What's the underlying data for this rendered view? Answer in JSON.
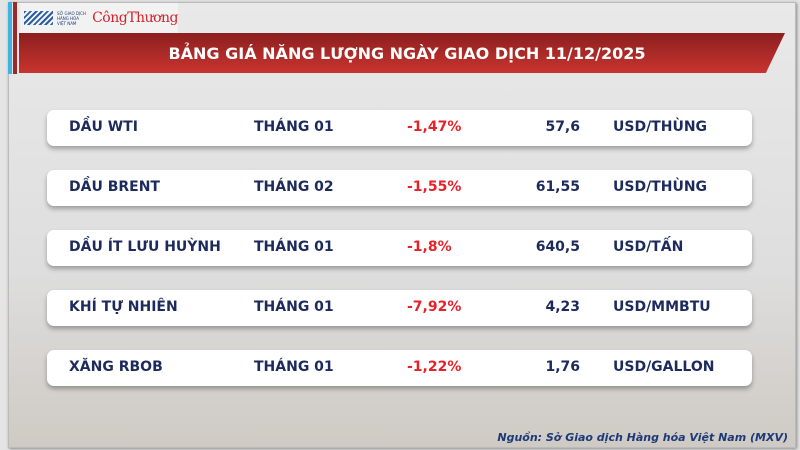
{
  "header": {
    "logo_text": "SỞ GIAO DỊCH HÀNG HÓA VIỆT NAM",
    "brand": "CôngThương",
    "title": "BẢNG GIÁ NĂNG LƯỢNG NGÀY GIAO DỊCH 11/12/2025"
  },
  "rows": [
    {
      "name": "DẦU WTI",
      "month": "THÁNG 01",
      "change": "-1,47%",
      "price": "57,6",
      "unit": "USD/THÙNG"
    },
    {
      "name": "DẦU BRENT",
      "month": "THÁNG 02",
      "change": "-1,55%",
      "price": "61,55",
      "unit": "USD/THÙNG"
    },
    {
      "name": "DẦU ÍT LƯU HUỲNH",
      "month": "THÁNG 01",
      "change": "-1,8%",
      "price": "640,5",
      "unit": "USD/TẤN"
    },
    {
      "name": "KHÍ TỰ NHIÊN",
      "month": "THÁNG 01",
      "change": "-7,92%",
      "price": "4,23",
      "unit": "USD/MMBTU"
    },
    {
      "name": "XĂNG RBOB",
      "month": "THÁNG 01",
      "change": "-1,22%",
      "price": "1,76",
      "unit": "USD/GALLON"
    }
  ],
  "source": "Nguồn: Sở Giao dịch Hàng hóa Việt Nam (MXV)",
  "colors": {
    "banner": "#b02a2a",
    "negative": "#e8202a",
    "text": "#1c2a5c"
  }
}
